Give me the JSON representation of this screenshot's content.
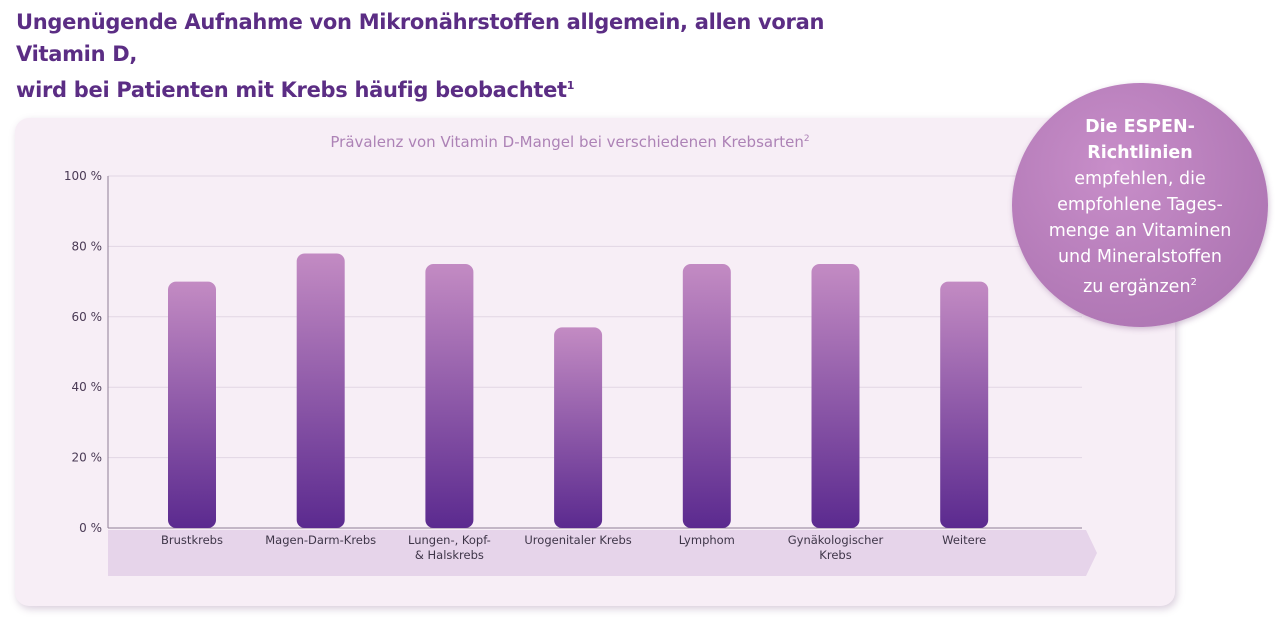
{
  "headline": {
    "line1": "Ungenügende Aufnahme von Mikronährstoffen allgemein, allen voran Vitamin D,",
    "line2": "wird bei Patienten mit Krebs häufig beobachtet",
    "footnote": "1"
  },
  "callout": {
    "bold1": "Die ESPEN-",
    "bold2": "Richtlinien",
    "line1": "empfehlen, die",
    "line2": "empfohlene Tages-",
    "line3": "menge an Vitaminen",
    "line4": "und Mineralstoffen",
    "line5": "zu ergänzen",
    "footnote": "2"
  },
  "colors": {
    "headline": "#5b2d84",
    "bar_top": "#c38bc3",
    "bar_bottom": "#5b2a8f",
    "category_band": "#e6d4ea",
    "callout_circle": "#b47bb8"
  },
  "chart_data": {
    "type": "bar",
    "title": "Prävalenz von Vitamin D-Mangel bei verschiedenen Krebsarten",
    "title_footnote": "2",
    "xlabel": "",
    "ylabel": "",
    "ylim": [
      0,
      100
    ],
    "yticks": [
      0,
      20,
      40,
      60,
      80,
      100
    ],
    "ytick_labels": [
      "0 %",
      "20 %",
      "40 %",
      "60 %",
      "80 %",
      "100 %"
    ],
    "grid": true,
    "categories": [
      [
        "Brustkrebs"
      ],
      [
        "Magen-Darm-Krebs"
      ],
      [
        "Lungen-, Kopf-",
        "& Halskrebs"
      ],
      [
        "Urogenitaler Krebs"
      ],
      [
        "Lymphom"
      ],
      [
        "Gynäkologischer",
        "Krebs"
      ],
      [
        "Weitere"
      ]
    ],
    "values": [
      70,
      78,
      75,
      57,
      75,
      75,
      70
    ]
  }
}
